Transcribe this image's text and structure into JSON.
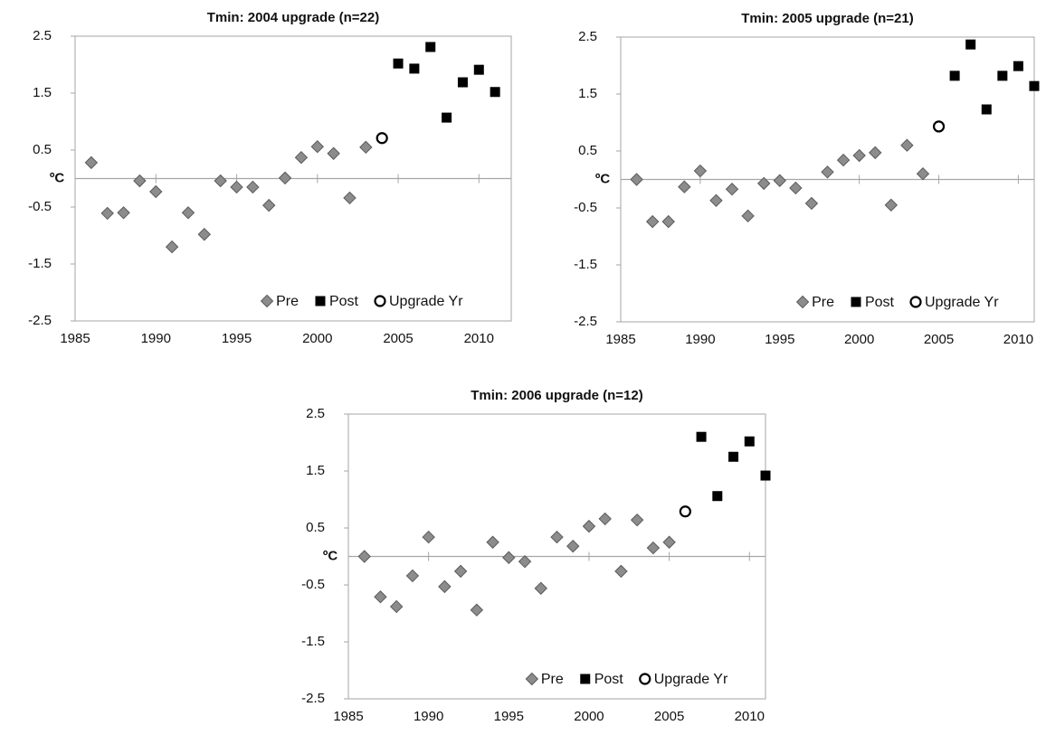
{
  "chart_data": [
    {
      "type": "scatter",
      "title": "Tmin: 2004 upgrade (n=22)",
      "y_label": "ºC",
      "xlim": [
        1985,
        2012
      ],
      "ylim": [
        -2.5,
        2.5
      ],
      "xticks": [
        1985,
        1990,
        1995,
        2000,
        2005,
        2010
      ],
      "yticks": [
        2.5,
        1.5,
        0.5,
        -0.5,
        -1.5,
        -2.5
      ],
      "legend": "bottom-right",
      "series": [
        {
          "name": "Pre",
          "marker": "diamond",
          "color": "#8c8c8c",
          "x": [
            1986,
            1987,
            1988,
            1989,
            1990,
            1991,
            1992,
            1993,
            1994,
            1995,
            1996,
            1997,
            1998,
            1999,
            2000,
            2001,
            2002,
            2003
          ],
          "values": [
            0.28,
            -0.61,
            -0.6,
            -0.04,
            -0.23,
            -1.2,
            -0.6,
            -0.98,
            -0.04,
            -0.15,
            -0.15,
            -0.47,
            0.01,
            0.37,
            0.56,
            0.44,
            -0.34,
            0.55
          ]
        },
        {
          "name": "Post",
          "marker": "square",
          "color": "#000000",
          "x": [
            2005,
            2006,
            2007,
            2008,
            2009,
            2010,
            2011
          ],
          "values": [
            2.02,
            1.93,
            2.31,
            1.07,
            1.69,
            1.91,
            1.52
          ]
        },
        {
          "name": "Upgrade Yr",
          "marker": "circle",
          "color": "#000000",
          "x": [
            2004
          ],
          "values": [
            0.71
          ]
        }
      ]
    },
    {
      "type": "scatter",
      "title": "Tmin: 2005 upgrade (n=21)",
      "y_label": "ºC",
      "xlim": [
        1985,
        2011
      ],
      "ylim": [
        -2.5,
        2.5
      ],
      "xticks": [
        1985,
        1990,
        1995,
        2000,
        2005,
        2010
      ],
      "yticks": [
        2.5,
        1.5,
        0.5,
        -0.5,
        -1.5,
        -2.5
      ],
      "legend": "bottom-right",
      "series": [
        {
          "name": "Pre",
          "marker": "diamond",
          "color": "#8c8c8c",
          "x": [
            1986,
            1987,
            1988,
            1989,
            1990,
            1991,
            1992,
            1993,
            1994,
            1995,
            1996,
            1997,
            1998,
            1999,
            2000,
            2001,
            2002,
            2003,
            2004
          ],
          "values": [
            0.0,
            -0.74,
            -0.74,
            -0.13,
            0.15,
            -0.37,
            -0.17,
            -0.64,
            -0.07,
            -0.02,
            -0.15,
            -0.42,
            0.13,
            0.34,
            0.42,
            0.47,
            -0.45,
            0.6,
            0.1
          ]
        },
        {
          "name": "Post",
          "marker": "square",
          "color": "#000000",
          "x": [
            2006,
            2007,
            2008,
            2009,
            2010,
            2011
          ],
          "values": [
            1.82,
            2.37,
            1.23,
            1.82,
            1.99,
            1.64
          ]
        },
        {
          "name": "Upgrade Yr",
          "marker": "circle",
          "color": "#000000",
          "x": [
            2005
          ],
          "values": [
            0.93
          ]
        }
      ]
    },
    {
      "type": "scatter",
      "title": "Tmin: 2006 upgrade (n=12)",
      "y_label": "ºC",
      "xlim": [
        1985,
        2011
      ],
      "ylim": [
        -2.5,
        2.5
      ],
      "xticks": [
        1985,
        1990,
        1995,
        2000,
        2005,
        2010
      ],
      "yticks": [
        2.5,
        1.5,
        0.5,
        -0.5,
        -1.5,
        -2.5
      ],
      "legend": "bottom-right",
      "series": [
        {
          "name": "Pre",
          "marker": "diamond",
          "color": "#8c8c8c",
          "x": [
            1986,
            1987,
            1988,
            1989,
            1990,
            1991,
            1992,
            1993,
            1994,
            1995,
            1996,
            1997,
            1998,
            1999,
            2000,
            2001,
            2002,
            2003,
            2004,
            2005
          ],
          "values": [
            0.0,
            -0.71,
            -0.88,
            -0.34,
            0.34,
            -0.53,
            -0.26,
            -0.94,
            0.25,
            -0.02,
            -0.09,
            -0.56,
            0.34,
            0.18,
            0.53,
            0.66,
            -0.26,
            0.64,
            0.15,
            0.25
          ]
        },
        {
          "name": "Post",
          "marker": "square",
          "color": "#000000",
          "x": [
            2007,
            2008,
            2009,
            2010,
            2011
          ],
          "values": [
            2.1,
            1.06,
            1.75,
            2.02,
            1.42
          ]
        },
        {
          "name": "Upgrade Yr",
          "marker": "circle",
          "color": "#000000",
          "x": [
            2006
          ],
          "values": [
            0.79
          ]
        }
      ]
    }
  ]
}
